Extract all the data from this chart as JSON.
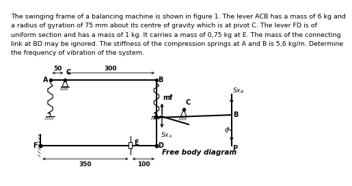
{
  "text_line1": "The swinging frame of a balancing machine is shown in figure 1. The lever ACB has a mass of 6 kg and",
  "text_line2": "a radius of gyration of 75 mm about its centre of gravity which is at pivot C. The lever FD is of",
  "text_line3": "uniform section and has a mass of 1 kg. It carries a mass of 0,75 kg at E. The mass of the connecting",
  "text_line4": "link at BD may be ignored. The stiffness of the compression springs at A and B is 5,6 kg/m. Determine",
  "text_line5": "the frequency of vibration of the system.",
  "bg_color": "#ffffff",
  "text_color": "#000000",
  "font_size_body": 6.8,
  "dim_50": "50",
  "dim_300": "300",
  "dim_350": "350",
  "dim_100": "100",
  "label_A": "A",
  "label_B": "B",
  "label_C": "C",
  "label_D": "D",
  "label_E": "E",
  "label_F": "F",
  "label_mf": "mf",
  "label_SxA": "Sx",
  "label_SxB": "Sx",
  "label_P": "P",
  "label_fbd": "Free body diagram",
  "label_theta": "θ"
}
